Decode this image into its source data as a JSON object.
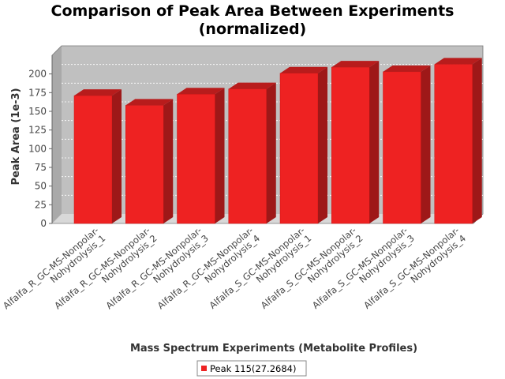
{
  "chart_data": {
    "type": "bar",
    "title_line1": "Comparison of Peak Area Between Experiments",
    "title_line2": "(normalized)",
    "xlabel": "Mass Spectrum Experiments (Metabolite Profiles)",
    "ylabel": "Peak Area (1e-3)",
    "ylim": [
      0,
      225
    ],
    "yticks": [
      0,
      25,
      50,
      75,
      100,
      125,
      150,
      175,
      200
    ],
    "grid": true,
    "categories": [
      [
        "Alfalfa_R_GC-MS-Nonpolar-",
        "Nohydrolysis_1"
      ],
      [
        "Alfalfa_R_GC-MS-Nonpolar-",
        "Nohydrolysis_2"
      ],
      [
        "Alfalfa_R_GC-MS-Nonpolar-",
        "Nohydrolysis_3"
      ],
      [
        "Alfalfa_R_GC-MS-Nonpolar-",
        "Nohydrolysis_4"
      ],
      [
        "Alfalfa_S_GC-MS-Nonpolar-",
        "Nohydrolysis_1"
      ],
      [
        "Alfalfa_S_GC-MS-Nonpolar-",
        "Nohydrolysis_2"
      ],
      [
        "Alfalfa_S_GC-MS-Nonpolar-",
        "Nohydrolysis_3"
      ],
      [
        "Alfalfa_S_GC-MS-Nonpolar-",
        "Nohydrolysis_4"
      ]
    ],
    "series": [
      {
        "name": "Peak 115(27.2684)",
        "color": "#ee2222",
        "values": [
          171,
          158,
          173,
          180,
          201,
          209,
          203,
          213
        ]
      }
    ],
    "legend_position": "bottom-center"
  }
}
